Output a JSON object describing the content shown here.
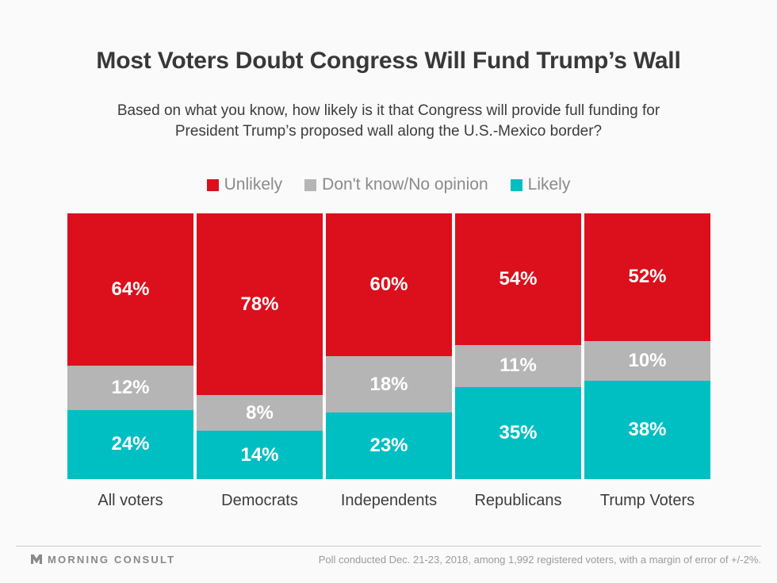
{
  "header": {
    "title": "Most Voters Doubt Congress Will Fund Trump’s Wall",
    "subtitle": "Based on what you know, how likely is it that Congress will provide full funding for President Trump’s proposed wall along the U.S.-Mexico border?"
  },
  "legend": {
    "items": [
      {
        "label": "Unlikely",
        "color": "#dc0f1c"
      },
      {
        "label": "Don't know/No opinion",
        "color": "#b5b5b5"
      },
      {
        "label": "Likely",
        "color": "#00bfc2"
      }
    ]
  },
  "chart_data": {
    "type": "bar",
    "stacked": true,
    "orientation": "vertical",
    "title": "Most Voters Doubt Congress Will Fund Trump’s Wall",
    "categories": [
      "All voters",
      "Democrats",
      "Independents",
      "Republicans",
      "Trump Voters"
    ],
    "series": [
      {
        "name": "Unlikely",
        "color": "#dc0f1c",
        "values": [
          64,
          78,
          60,
          54,
          52
        ]
      },
      {
        "name": "Don't know/No opinion",
        "color": "#b5b5b5",
        "values": [
          12,
          8,
          18,
          11,
          10
        ]
      },
      {
        "name": "Likely",
        "color": "#00bfc2",
        "values": [
          24,
          14,
          23,
          35,
          38
        ]
      }
    ],
    "value_suffix": "%",
    "value_labels_shown": true,
    "legend_position": "top",
    "ylim": [
      0,
      100
    ],
    "grid": false,
    "colors": {
      "background": "#fafafa",
      "label_text": "#ffffff",
      "axis_text": "#3d3d3d"
    }
  },
  "footer": {
    "logo_text": "MORNING CONSULT",
    "note": "Poll conducted Dec. 21-23, 2018, among 1,992 registered voters, with a margin of error of +/-2%."
  }
}
